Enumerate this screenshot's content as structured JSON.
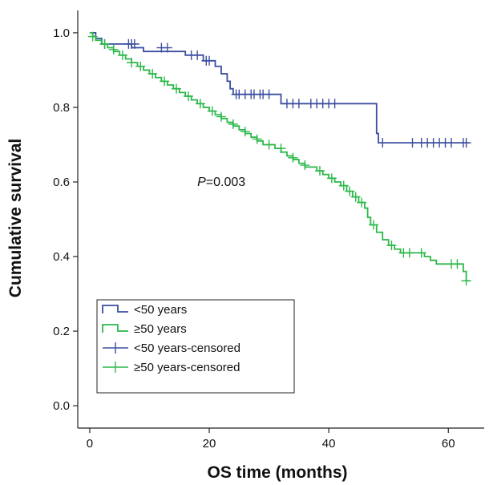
{
  "chart_data": {
    "type": "line",
    "xlabel": "OS time (months)",
    "ylabel": "Cumulative survival",
    "xlim": [
      -2,
      66
    ],
    "ylim": [
      -0.06,
      1.06
    ],
    "xticks": [
      0,
      20,
      40,
      60
    ],
    "yticks": [
      0.0,
      0.2,
      0.4,
      0.6,
      0.8,
      1.0
    ],
    "ytick_labels": [
      "0.0",
      "0.2",
      "0.4",
      "0.6",
      "0.8",
      "1.0"
    ],
    "annotation": {
      "p_italic": "P",
      "p_value": "=0.003",
      "x": 18,
      "y": 0.6
    },
    "legend": {
      "position": "bottom-left",
      "entries": [
        "<50 years",
        "≥50 years",
        "<50 years-censored",
        "≥50 years-censored"
      ]
    },
    "series": [
      {
        "name": "<50 years",
        "color": "#3b4ea0",
        "steps": [
          [
            0,
            1.0
          ],
          [
            1,
            0.985
          ],
          [
            2,
            0.97
          ],
          [
            7,
            0.96
          ],
          [
            9,
            0.95
          ],
          [
            16,
            0.94
          ],
          [
            19,
            0.925
          ],
          [
            21,
            0.91
          ],
          [
            22,
            0.89
          ],
          [
            23,
            0.87
          ],
          [
            23.5,
            0.85
          ],
          [
            24,
            0.835
          ],
          [
            32,
            0.81
          ],
          [
            48,
            0.73
          ],
          [
            48.3,
            0.705
          ],
          [
            63.5,
            0.705
          ]
        ],
        "censored": [
          [
            2.5,
            0.97
          ],
          [
            6.5,
            0.97
          ],
          [
            7,
            0.97
          ],
          [
            7.5,
            0.97
          ],
          [
            12,
            0.96
          ],
          [
            13,
            0.96
          ],
          [
            17,
            0.94
          ],
          [
            18,
            0.94
          ],
          [
            19.5,
            0.925
          ],
          [
            20,
            0.925
          ],
          [
            24.5,
            0.835
          ],
          [
            25,
            0.835
          ],
          [
            26,
            0.835
          ],
          [
            27,
            0.835
          ],
          [
            27.5,
            0.835
          ],
          [
            28.5,
            0.835
          ],
          [
            29,
            0.835
          ],
          [
            30,
            0.835
          ],
          [
            33,
            0.81
          ],
          [
            34,
            0.81
          ],
          [
            35,
            0.81
          ],
          [
            37,
            0.81
          ],
          [
            38,
            0.81
          ],
          [
            39,
            0.81
          ],
          [
            40,
            0.81
          ],
          [
            41,
            0.81
          ],
          [
            49,
            0.705
          ],
          [
            54,
            0.705
          ],
          [
            55.5,
            0.705
          ],
          [
            56.5,
            0.705
          ],
          [
            57.5,
            0.705
          ],
          [
            58.5,
            0.705
          ],
          [
            59.5,
            0.705
          ],
          [
            60.5,
            0.705
          ],
          [
            62.5,
            0.705
          ],
          [
            63,
            0.705
          ]
        ]
      },
      {
        "name": "≥50 years",
        "color": "#2db84a",
        "steps": [
          [
            0,
            1.0
          ],
          [
            0.5,
            0.99
          ],
          [
            1,
            0.98
          ],
          [
            2,
            0.97
          ],
          [
            3,
            0.96
          ],
          [
            4,
            0.95
          ],
          [
            5,
            0.94
          ],
          [
            6,
            0.93
          ],
          [
            7,
            0.92
          ],
          [
            8,
            0.91
          ],
          [
            9,
            0.9
          ],
          [
            10,
            0.89
          ],
          [
            11,
            0.88
          ],
          [
            12,
            0.87
          ],
          [
            13,
            0.86
          ],
          [
            14,
            0.85
          ],
          [
            15,
            0.84
          ],
          [
            16,
            0.83
          ],
          [
            17,
            0.82
          ],
          [
            18,
            0.81
          ],
          [
            19,
            0.8
          ],
          [
            20,
            0.79
          ],
          [
            21,
            0.78
          ],
          [
            22,
            0.77
          ],
          [
            23,
            0.76
          ],
          [
            24,
            0.75
          ],
          [
            25,
            0.74
          ],
          [
            26,
            0.73
          ],
          [
            27,
            0.72
          ],
          [
            28,
            0.71
          ],
          [
            29,
            0.7
          ],
          [
            31,
            0.69
          ],
          [
            32,
            0.68
          ],
          [
            33,
            0.67
          ],
          [
            34,
            0.66
          ],
          [
            35,
            0.65
          ],
          [
            36,
            0.64
          ],
          [
            38,
            0.63
          ],
          [
            39,
            0.62
          ],
          [
            40,
            0.61
          ],
          [
            41,
            0.6
          ],
          [
            42,
            0.59
          ],
          [
            43,
            0.575
          ],
          [
            44,
            0.56
          ],
          [
            45,
            0.545
          ],
          [
            46,
            0.53
          ],
          [
            46.5,
            0.505
          ],
          [
            47,
            0.485
          ],
          [
            48,
            0.465
          ],
          [
            49,
            0.445
          ],
          [
            50,
            0.43
          ],
          [
            51,
            0.42
          ],
          [
            52,
            0.41
          ],
          [
            55,
            0.41
          ],
          [
            56,
            0.4
          ],
          [
            57,
            0.39
          ],
          [
            58,
            0.38
          ],
          [
            60,
            0.38
          ],
          [
            62,
            0.38
          ],
          [
            62.5,
            0.36
          ],
          [
            63,
            0.335
          ],
          [
            63.5,
            0.335
          ]
        ],
        "censored": [
          [
            0.5,
            0.99
          ],
          [
            2.5,
            0.97
          ],
          [
            4,
            0.955
          ],
          [
            5.5,
            0.94
          ],
          [
            7,
            0.92
          ],
          [
            8.5,
            0.91
          ],
          [
            10.5,
            0.89
          ],
          [
            12.5,
            0.87
          ],
          [
            14.5,
            0.85
          ],
          [
            16.5,
            0.83
          ],
          [
            18.5,
            0.81
          ],
          [
            20.5,
            0.79
          ],
          [
            22,
            0.775
          ],
          [
            24,
            0.755
          ],
          [
            26,
            0.735
          ],
          [
            28,
            0.715
          ],
          [
            30,
            0.7
          ],
          [
            32,
            0.69
          ],
          [
            34,
            0.665
          ],
          [
            36,
            0.645
          ],
          [
            38.5,
            0.63
          ],
          [
            40.5,
            0.61
          ],
          [
            42.5,
            0.59
          ],
          [
            43.5,
            0.575
          ],
          [
            44.5,
            0.56
          ],
          [
            45.5,
            0.545
          ],
          [
            47.5,
            0.485
          ],
          [
            50.5,
            0.43
          ],
          [
            52.5,
            0.41
          ],
          [
            53.5,
            0.41
          ],
          [
            55.5,
            0.41
          ],
          [
            60.5,
            0.38
          ],
          [
            61.5,
            0.38
          ],
          [
            63,
            0.335
          ]
        ]
      }
    ]
  }
}
